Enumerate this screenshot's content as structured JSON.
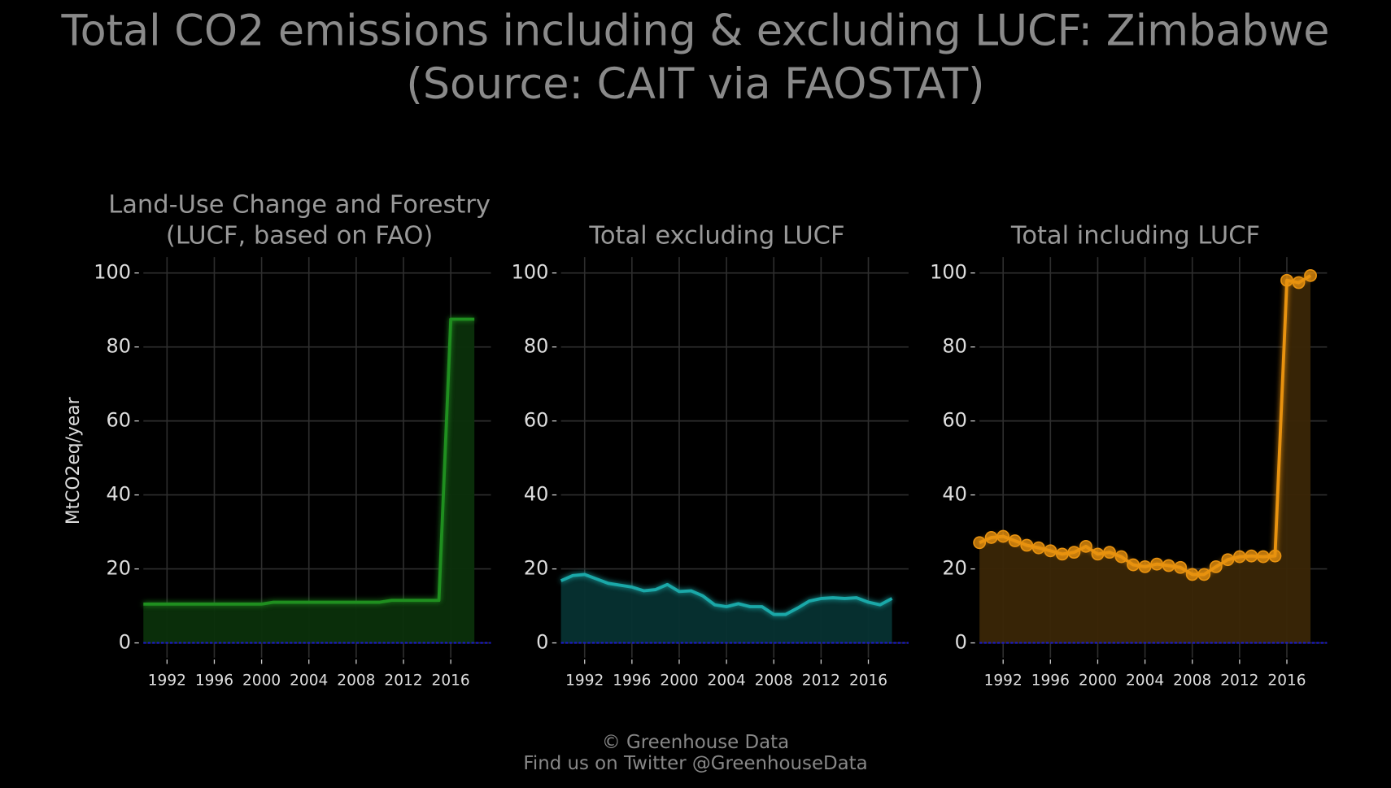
{
  "header": {
    "title": "Total CO2 emissions including & excluding LUCF: Zimbabwe",
    "source": "(Source: CAIT via FAOSTAT)"
  },
  "footer": {
    "copyright": "© Greenhouse Data",
    "twitter": "Find us on Twitter @GreenhouseData"
  },
  "chart_data": [
    {
      "type": "area",
      "title": [
        "Land-Use Change and Forestry",
        "(LUCF, based on FAO)"
      ],
      "ylabel": "MtCO2eq/year",
      "x": [
        1990,
        1991,
        1992,
        1993,
        1994,
        1995,
        1996,
        1997,
        1998,
        1999,
        2000,
        2001,
        2002,
        2003,
        2004,
        2005,
        2006,
        2007,
        2008,
        2009,
        2010,
        2011,
        2012,
        2013,
        2014,
        2015,
        2016,
        2017,
        2018
      ],
      "series": [
        {
          "name": "LUCF",
          "color": "#1f8f1f",
          "fill": "#0b300b",
          "values": [
            10.5,
            10.5,
            10.5,
            10.5,
            10.5,
            10.5,
            10.5,
            10.5,
            10.5,
            10.5,
            10.5,
            11,
            11,
            11,
            11,
            11,
            11,
            11,
            11,
            11,
            11,
            11.5,
            11.5,
            11.5,
            11.5,
            11.5,
            87.5,
            87.5,
            87.5
          ]
        }
      ],
      "xlim": [
        1990,
        2019.4
      ],
      "ylim": [
        -4,
        104.3
      ],
      "xticks": [
        1992,
        1996,
        2000,
        2004,
        2008,
        2012,
        2016
      ],
      "yticks": [
        0,
        20,
        40,
        60,
        80,
        100
      ],
      "grid": true,
      "markers": false,
      "zero_line_color": "#1a1acc"
    },
    {
      "type": "area",
      "title": [
        "Total excluding LUCF"
      ],
      "x": [
        1990,
        1991,
        1992,
        1993,
        1994,
        1995,
        1996,
        1997,
        1998,
        1999,
        2000,
        2001,
        2002,
        2003,
        2004,
        2005,
        2006,
        2007,
        2008,
        2009,
        2010,
        2011,
        2012,
        2013,
        2014,
        2015,
        2016,
        2017,
        2018
      ],
      "series": [
        {
          "name": "Total excluding LUCF",
          "color": "#1aa8a8",
          "fill": "#063232",
          "values": [
            16.8,
            18.2,
            18.5,
            17.3,
            16.1,
            15.6,
            15.1,
            14.1,
            14.4,
            15.8,
            13.9,
            14.1,
            12.7,
            10.3,
            9.8,
            10.6,
            9.8,
            9.8,
            7.7,
            7.7,
            9.4,
            11.3,
            12,
            12.2,
            12,
            12.2,
            11,
            10.3,
            12
          ]
        }
      ],
      "xlim": [
        1990,
        2019.4
      ],
      "ylim": [
        -4,
        104.3
      ],
      "xticks": [
        1992,
        1996,
        2000,
        2004,
        2008,
        2012,
        2016
      ],
      "yticks": [
        0,
        20,
        40,
        60,
        80,
        100
      ],
      "grid": true,
      "markers": false,
      "zero_line_color": "#1a1acc"
    },
    {
      "type": "area",
      "title": [
        "Total including LUCF"
      ],
      "x": [
        1990,
        1991,
        1992,
        1993,
        1994,
        1995,
        1996,
        1997,
        1998,
        1999,
        2000,
        2001,
        2002,
        2003,
        2004,
        2005,
        2006,
        2007,
        2008,
        2009,
        2010,
        2011,
        2012,
        2013,
        2014,
        2015,
        2016,
        2017,
        2018
      ],
      "series": [
        {
          "name": "Total including LUCF",
          "color": "#e8920f",
          "fill": "#3a2606",
          "values": [
            27.1,
            28.5,
            28.8,
            27.6,
            26.4,
            25.7,
            24.9,
            24,
            24.5,
            26.1,
            24,
            24.5,
            23.3,
            21.1,
            20.6,
            21.3,
            20.9,
            20.4,
            18.5,
            18.5,
            20.6,
            22.5,
            23.3,
            23.5,
            23.3,
            23.5,
            98,
            97.4,
            99.3
          ]
        }
      ],
      "xlim": [
        1990,
        2019.4
      ],
      "ylim": [
        -4,
        104.3
      ],
      "xticks": [
        1992,
        1996,
        2000,
        2004,
        2008,
        2012,
        2016
      ],
      "yticks": [
        0,
        20,
        40,
        60,
        80,
        100
      ],
      "grid": true,
      "markers": true,
      "zero_line_color": "#1a1acc"
    }
  ]
}
